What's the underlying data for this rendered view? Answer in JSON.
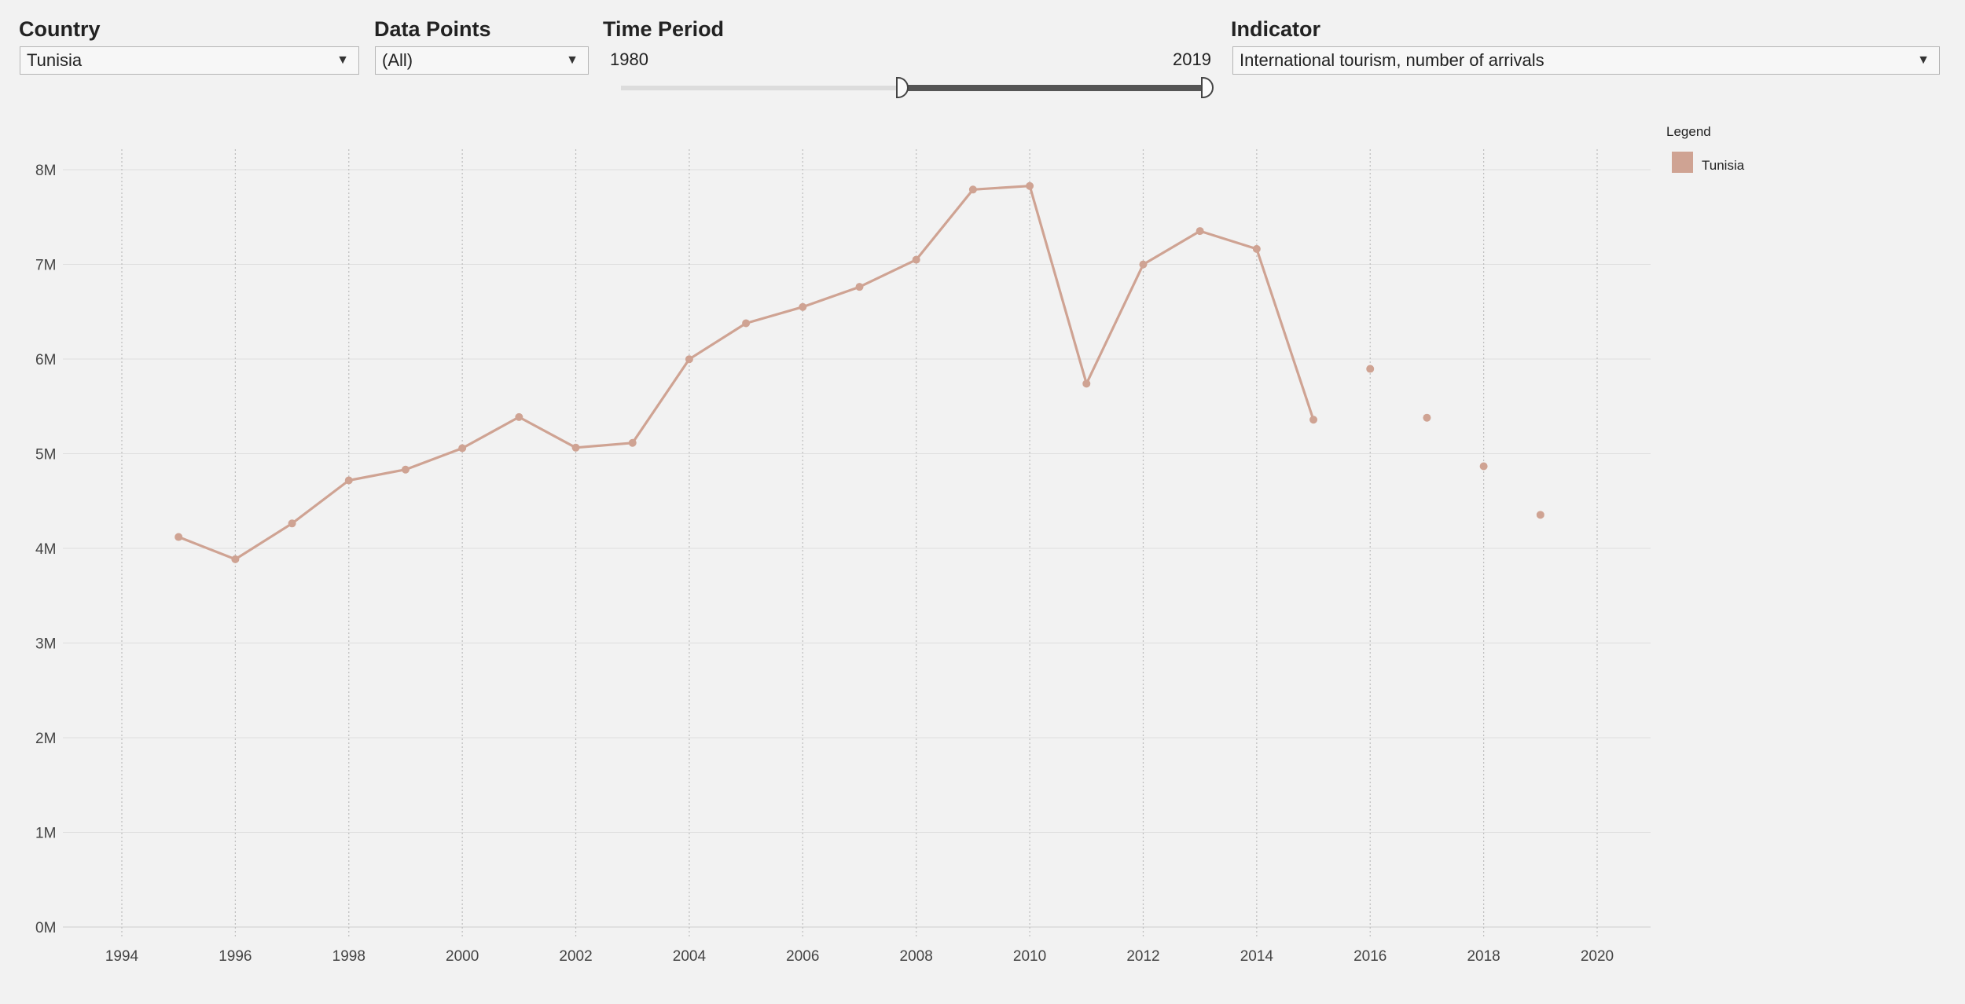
{
  "controls": {
    "country": {
      "label": "Country",
      "value": "Tunisia"
    },
    "data_points": {
      "label": "Data Points",
      "value": "(All)"
    },
    "time_period": {
      "label": "Time Period",
      "start": "1980",
      "end": "2019",
      "selected_start_fraction": 0.48,
      "selected_end_fraction": 1.0
    },
    "indicator": {
      "label": "Indicator",
      "value": "International tourism, number of arrivals"
    },
    "caret_glyph": "▼"
  },
  "legend": {
    "title": "Legend",
    "items": [
      {
        "name": "Tunisia",
        "color": "#cfa393"
      }
    ]
  },
  "chart_data": {
    "type": "line",
    "title": "",
    "xlabel": "",
    "ylabel": "",
    "xlim": [
      1993,
      2021
    ],
    "ylim": [
      0,
      8200000
    ],
    "x_ticks": [
      1994,
      1996,
      1998,
      2000,
      2002,
      2004,
      2006,
      2008,
      2010,
      2012,
      2014,
      2016,
      2018,
      2020
    ],
    "y_ticks": [
      0,
      1000000,
      2000000,
      3000000,
      4000000,
      5000000,
      6000000,
      7000000,
      8000000
    ],
    "y_tick_labels": [
      "0M",
      "1M",
      "2M",
      "3M",
      "4M",
      "5M",
      "6M",
      "7M",
      "8M"
    ],
    "grid": {
      "vertical": true,
      "horizontal": true
    },
    "legend_position": "top-right",
    "series": [
      {
        "name": "Tunisia",
        "color": "#cfa393",
        "points": [
          {
            "x": 1995,
            "y": 4120000,
            "connected": true
          },
          {
            "x": 1996,
            "y": 3885000,
            "connected": true
          },
          {
            "x": 1997,
            "y": 4263000,
            "connected": true
          },
          {
            "x": 1998,
            "y": 4718000,
            "connected": true
          },
          {
            "x": 1999,
            "y": 4832000,
            "connected": true
          },
          {
            "x": 2000,
            "y": 5058000,
            "connected": true
          },
          {
            "x": 2001,
            "y": 5387000,
            "connected": true
          },
          {
            "x": 2002,
            "y": 5064000,
            "connected": true
          },
          {
            "x": 2003,
            "y": 5114000,
            "connected": true
          },
          {
            "x": 2004,
            "y": 5998000,
            "connected": true
          },
          {
            "x": 2005,
            "y": 6378000,
            "connected": true
          },
          {
            "x": 2006,
            "y": 6550000,
            "connected": true
          },
          {
            "x": 2007,
            "y": 6762000,
            "connected": true
          },
          {
            "x": 2008,
            "y": 7049000,
            "connected": true
          },
          {
            "x": 2009,
            "y": 7790000,
            "connected": true
          },
          {
            "x": 2010,
            "y": 7828000,
            "connected": true
          },
          {
            "x": 2011,
            "y": 5740000,
            "connected": true
          },
          {
            "x": 2012,
            "y": 6999000,
            "connected": true
          },
          {
            "x": 2013,
            "y": 7352000,
            "connected": true
          },
          {
            "x": 2014,
            "y": 7163000,
            "connected": true
          },
          {
            "x": 2015,
            "y": 5359000,
            "connected": true
          },
          {
            "x": 2016,
            "y": 5896000,
            "connected": false
          },
          {
            "x": 2017,
            "y": 5380000,
            "connected": false
          },
          {
            "x": 2018,
            "y": 4867000,
            "connected": false
          },
          {
            "x": 2019,
            "y": 4354000,
            "connected": false
          }
        ]
      }
    ]
  }
}
